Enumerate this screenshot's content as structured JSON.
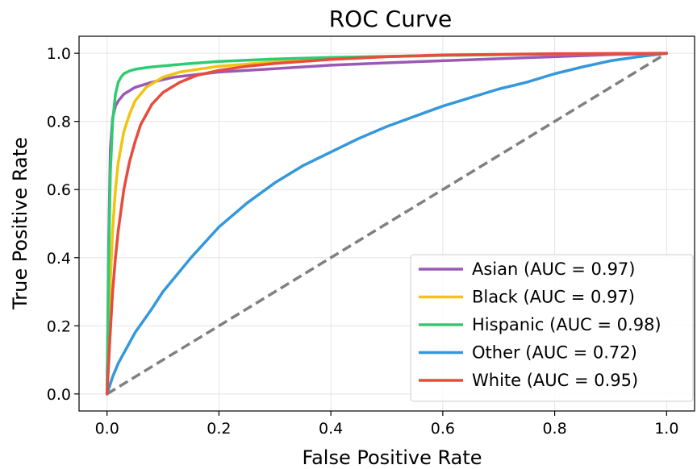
{
  "chart_data": {
    "type": "line",
    "title": "ROC Curve",
    "xlabel": "False Positive Rate",
    "ylabel": "True Positive Rate",
    "xlim": [
      -0.05,
      1.05
    ],
    "ylim": [
      -0.05,
      1.05
    ],
    "xticks": [
      "0.0",
      "0.2",
      "0.4",
      "0.6",
      "0.8",
      "1.0"
    ],
    "yticks": [
      "0.0",
      "0.2",
      "0.4",
      "0.6",
      "0.8",
      "1.0"
    ],
    "grid": true,
    "legend_position": "lower-right",
    "series": [
      {
        "name": "Asian (AUC = 0.97)",
        "color": "#9b59b6",
        "x": [
          0,
          0.003,
          0.006,
          0.01,
          0.015,
          0.02,
          0.03,
          0.05,
          0.08,
          0.12,
          0.2,
          0.3,
          0.4,
          0.5,
          0.6,
          0.7,
          0.8,
          0.9,
          1.0
        ],
        "y": [
          0,
          0.45,
          0.72,
          0.81,
          0.845,
          0.86,
          0.88,
          0.9,
          0.915,
          0.93,
          0.945,
          0.955,
          0.965,
          0.972,
          0.978,
          0.984,
          0.99,
          0.996,
          1.0
        ]
      },
      {
        "name": "Black (AUC = 0.97)",
        "color": "#f1c40f",
        "x": [
          0,
          0.005,
          0.01,
          0.015,
          0.02,
          0.03,
          0.04,
          0.05,
          0.07,
          0.1,
          0.13,
          0.17,
          0.2,
          0.3,
          0.4,
          0.5,
          0.6,
          0.8,
          1.0
        ],
        "y": [
          0,
          0.3,
          0.48,
          0.6,
          0.68,
          0.77,
          0.82,
          0.86,
          0.9,
          0.93,
          0.945,
          0.955,
          0.962,
          0.975,
          0.984,
          0.99,
          0.994,
          0.998,
          1.0
        ]
      },
      {
        "name": "Hispanic (AUC = 0.98)",
        "color": "#2ecc71",
        "x": [
          0,
          0.003,
          0.006,
          0.01,
          0.015,
          0.02,
          0.025,
          0.03,
          0.04,
          0.05,
          0.07,
          0.1,
          0.15,
          0.2,
          0.3,
          0.4,
          0.6,
          0.8,
          1.0
        ],
        "y": [
          0,
          0.4,
          0.65,
          0.8,
          0.88,
          0.915,
          0.93,
          0.94,
          0.948,
          0.953,
          0.958,
          0.963,
          0.97,
          0.976,
          0.983,
          0.988,
          0.994,
          0.998,
          1.0
        ]
      },
      {
        "name": "Other (AUC = 0.72)",
        "color": "#3498db",
        "x": [
          0,
          0.01,
          0.02,
          0.05,
          0.08,
          0.1,
          0.15,
          0.2,
          0.25,
          0.3,
          0.35,
          0.4,
          0.45,
          0.5,
          0.55,
          0.6,
          0.65,
          0.7,
          0.75,
          0.8,
          0.85,
          0.9,
          0.95,
          1.0
        ],
        "y": [
          0,
          0.05,
          0.09,
          0.18,
          0.25,
          0.3,
          0.4,
          0.49,
          0.56,
          0.62,
          0.67,
          0.71,
          0.75,
          0.785,
          0.815,
          0.845,
          0.87,
          0.895,
          0.915,
          0.94,
          0.96,
          0.978,
          0.99,
          1.0
        ]
      },
      {
        "name": "White (AUC = 0.95)",
        "color": "#e74c3c",
        "x": [
          0,
          0.005,
          0.01,
          0.015,
          0.02,
          0.03,
          0.04,
          0.05,
          0.06,
          0.08,
          0.1,
          0.13,
          0.16,
          0.2,
          0.25,
          0.3,
          0.4,
          0.5,
          0.6,
          0.8,
          1.0
        ],
        "y": [
          0,
          0.16,
          0.3,
          0.4,
          0.48,
          0.6,
          0.68,
          0.74,
          0.79,
          0.85,
          0.885,
          0.915,
          0.935,
          0.95,
          0.962,
          0.97,
          0.982,
          0.99,
          0.995,
          0.999,
          1.0
        ]
      }
    ],
    "reference_line": {
      "color": "#808080",
      "x": [
        0,
        1
      ],
      "y": [
        0,
        1
      ]
    }
  }
}
